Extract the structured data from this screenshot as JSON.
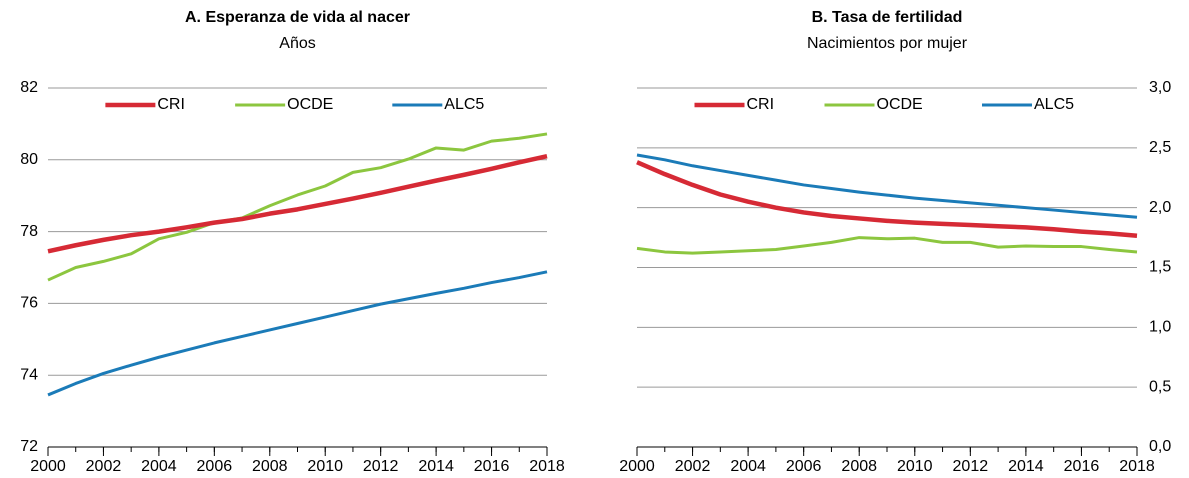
{
  "chart_data": [
    {
      "type": "line",
      "title": "A. Esperanza de vida al nacer",
      "subtitle": "Años",
      "x": [
        2000,
        2001,
        2002,
        2003,
        2004,
        2005,
        2006,
        2007,
        2008,
        2009,
        2010,
        2011,
        2012,
        2013,
        2014,
        2015,
        2016,
        2017,
        2018
      ],
      "series": [
        {
          "name": "CRI",
          "color": "#d62a35",
          "values": [
            77.45,
            77.62,
            77.77,
            77.9,
            78.0,
            78.12,
            78.25,
            78.35,
            78.5,
            78.62,
            78.77,
            78.92,
            79.08,
            79.25,
            79.42,
            79.58,
            79.75,
            79.93,
            80.1
          ]
        },
        {
          "name": "OCDE",
          "color": "#8cc63f",
          "values": [
            76.65,
            77.0,
            77.17,
            77.38,
            77.8,
            77.98,
            78.25,
            78.38,
            78.72,
            79.02,
            79.27,
            79.65,
            79.78,
            80.02,
            80.33,
            80.27,
            80.52,
            80.6,
            80.72
          ]
        },
        {
          "name": "ALC5",
          "color": "#1b7bb8",
          "values": [
            73.45,
            73.77,
            74.05,
            74.28,
            74.5,
            74.7,
            74.9,
            75.08,
            75.26,
            75.44,
            75.62,
            75.8,
            75.98,
            76.13,
            76.28,
            76.42,
            76.58,
            76.72,
            76.88
          ]
        }
      ],
      "xlim": [
        2000,
        2018
      ],
      "xticks": [
        2000,
        2002,
        2004,
        2006,
        2008,
        2010,
        2012,
        2014,
        2016,
        2018
      ],
      "ylim": [
        72,
        82
      ],
      "yticks": [
        72,
        74,
        76,
        78,
        80,
        82
      ],
      "y_axis_side": "left",
      "grid": true,
      "legend_position": "top"
    },
    {
      "type": "line",
      "title": "B. Tasa de fertilidad",
      "subtitle": "Nacimientos por mujer",
      "x": [
        2000,
        2001,
        2002,
        2003,
        2004,
        2005,
        2006,
        2007,
        2008,
        2009,
        2010,
        2011,
        2012,
        2013,
        2014,
        2015,
        2016,
        2017,
        2018
      ],
      "series": [
        {
          "name": "CRI",
          "color": "#d62a35",
          "values": [
            2.38,
            2.28,
            2.19,
            2.11,
            2.05,
            2.0,
            1.96,
            1.93,
            1.91,
            1.89,
            1.875,
            1.865,
            1.855,
            1.845,
            1.835,
            1.82,
            1.8,
            1.785,
            1.765
          ]
        },
        {
          "name": "OCDE",
          "color": "#8cc63f",
          "values": [
            1.66,
            1.63,
            1.62,
            1.63,
            1.64,
            1.65,
            1.68,
            1.71,
            1.75,
            1.74,
            1.745,
            1.71,
            1.71,
            1.67,
            1.68,
            1.675,
            1.675,
            1.65,
            1.63
          ]
        },
        {
          "name": "ALC5",
          "color": "#1b7bb8",
          "values": [
            2.44,
            2.4,
            2.35,
            2.31,
            2.27,
            2.23,
            2.19,
            2.16,
            2.13,
            2.105,
            2.08,
            2.06,
            2.04,
            2.02,
            2.0,
            1.98,
            1.96,
            1.94,
            1.92
          ]
        }
      ],
      "xlim": [
        2000,
        2018
      ],
      "xticks": [
        2000,
        2002,
        2004,
        2006,
        2008,
        2010,
        2012,
        2014,
        2016,
        2018
      ],
      "ylim": [
        0,
        3
      ],
      "yticks": [
        {
          "value": 0,
          "label": "0,0"
        },
        {
          "value": 0.5,
          "label": "0,5"
        },
        {
          "value": 1,
          "label": "1,0"
        },
        {
          "value": 1.5,
          "label": "1,5"
        },
        {
          "value": 2,
          "label": "2,0"
        },
        {
          "value": 2.5,
          "label": "2,5"
        },
        {
          "value": 3,
          "label": "3,0"
        }
      ],
      "y_axis_side": "right",
      "grid": true,
      "legend_position": "top"
    }
  ]
}
